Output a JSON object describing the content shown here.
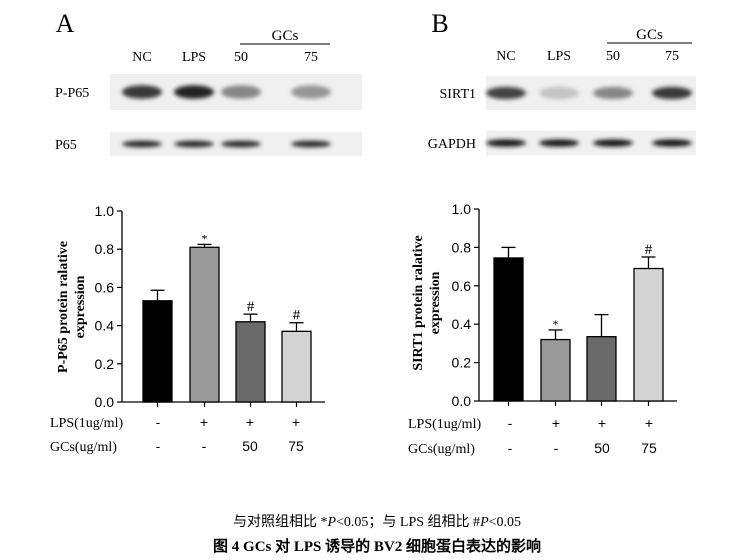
{
  "panels": [
    {
      "letter": "A",
      "blot_headers": [
        "NC",
        "LPS",
        "50",
        "75"
      ],
      "gcs_label": "GCs",
      "blot_rows": [
        {
          "label": "P-P65",
          "intensity": [
            0.8,
            0.9,
            0.45,
            0.38
          ]
        },
        {
          "label": "P65",
          "intensity": [
            0.85,
            0.85,
            0.85,
            0.85
          ]
        }
      ]
    },
    {
      "letter": "B",
      "blot_headers": [
        "NC",
        "LPS",
        "50",
        "75"
      ],
      "gcs_label": "GCs",
      "blot_rows": [
        {
          "label": "SIRT1",
          "intensity": [
            0.75,
            0.18,
            0.45,
            0.8
          ]
        },
        {
          "label": "GAPDH",
          "intensity": [
            0.95,
            0.95,
            0.95,
            0.95
          ]
        }
      ]
    }
  ],
  "chart_data": [
    {
      "type": "bar",
      "ylabel": "P-P65 protein ralative expression",
      "ylim": [
        0,
        1.0
      ],
      "yticks": [
        "0.0",
        "0.2",
        "0.4",
        "0.6",
        "0.8",
        "1.0"
      ],
      "values": [
        0.53,
        0.81,
        0.42,
        0.37
      ],
      "errors": [
        0.055,
        0.015,
        0.04,
        0.045
      ],
      "annotations": [
        "",
        "*",
        "#",
        "#"
      ],
      "bar_colors": [
        "#000000",
        "#9a9a9a",
        "#6a6a6a",
        "#d4d4d4"
      ],
      "conditions": [
        {
          "label": "LPS(1ug/ml)",
          "values": [
            "-",
            "+",
            "+",
            "+"
          ]
        },
        {
          "label": "GCs(ug/ml)",
          "values": [
            "-",
            "-",
            "50",
            "75"
          ]
        }
      ]
    },
    {
      "type": "bar",
      "ylabel": "SIRT1 protein ralative expression",
      "ylim": [
        0,
        1.0
      ],
      "yticks": [
        "0.0",
        "0.2",
        "0.4",
        "0.6",
        "0.8",
        "1.0"
      ],
      "values": [
        0.745,
        0.32,
        0.335,
        0.69
      ],
      "errors": [
        0.055,
        0.05,
        0.115,
        0.06
      ],
      "annotations": [
        "",
        "*",
        "",
        "#"
      ],
      "bar_colors": [
        "#000000",
        "#9a9a9a",
        "#6a6a6a",
        "#d4d4d4"
      ],
      "conditions": [
        {
          "label": "LPS(1ug/ml)",
          "values": [
            "-",
            "+",
            "+",
            "+"
          ]
        },
        {
          "label": "GCs(ug/ml)",
          "values": [
            "-",
            "-",
            "50",
            "75"
          ]
        }
      ]
    }
  ],
  "caption": {
    "note_prefix": "与对照组相比  *",
    "note_p1": "P",
    "note_mid": "<0.05；与 LPS 组相比  #",
    "note_p2": "P",
    "note_suffix": "<0.05",
    "title": "图 4    GCs 对 LPS 诱导的 BV2 细胞蛋白表达的影响"
  }
}
